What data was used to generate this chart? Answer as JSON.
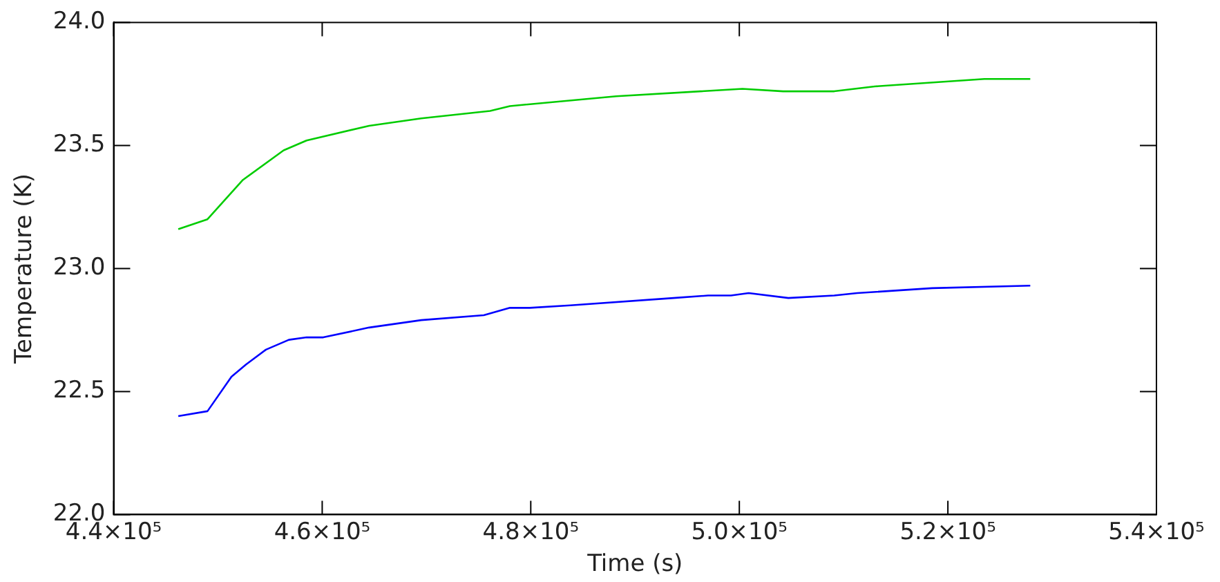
{
  "chart_data": {
    "type": "line",
    "xlabel": "Time (s)",
    "ylabel": "Temperature (K)",
    "xlim": [
      440000,
      540000
    ],
    "xticks": [
      {
        "value": 440000,
        "label": "4.4×10⁵"
      },
      {
        "value": 460000,
        "label": "4.6×10⁵"
      },
      {
        "value": 480000,
        "label": "4.8×10⁵"
      },
      {
        "value": 500000,
        "label": "5.0×10⁵"
      },
      {
        "value": 520000,
        "label": "5.2×10⁵"
      },
      {
        "value": 540000,
        "label": "5.4×10⁵"
      }
    ],
    "ylim": [
      22.0,
      24.0
    ],
    "yticks": [
      {
        "value": 22.0,
        "label": "22.0"
      },
      {
        "value": 22.5,
        "label": "22.5"
      },
      {
        "value": 23.0,
        "label": "23.0"
      },
      {
        "value": 23.5,
        "label": "23.5"
      },
      {
        "value": 24.0,
        "label": "24.0"
      }
    ],
    "grid": false,
    "legend": false,
    "marker": "none",
    "line_style": "solid",
    "series": [
      {
        "color": "#00cc00",
        "x": [
          446200,
          449000,
          452400,
          456300,
          458500,
          464500,
          469500,
          476100,
          478000,
          488200,
          500300,
          504200,
          509100,
          513000,
          523500,
          527900
        ],
        "values": [
          23.16,
          23.2,
          23.36,
          23.48,
          23.52,
          23.58,
          23.61,
          23.64,
          23.66,
          23.7,
          23.73,
          23.72,
          23.72,
          23.74,
          23.77,
          23.77
        ]
      },
      {
        "color": "#0000ff",
        "x": [
          446200,
          449000,
          451300,
          452700,
          454600,
          456800,
          458500,
          460100,
          464500,
          469500,
          475500,
          478000,
          479900,
          483800,
          493700,
          497000,
          499200,
          500900,
          504700,
          509100,
          511300,
          518500,
          527900
        ],
        "values": [
          22.4,
          22.42,
          22.56,
          22.61,
          22.67,
          22.71,
          22.72,
          22.72,
          22.76,
          22.79,
          22.81,
          22.84,
          22.84,
          22.85,
          22.88,
          22.89,
          22.89,
          22.9,
          22.88,
          22.89,
          22.9,
          22.92,
          22.93
        ]
      }
    ]
  }
}
